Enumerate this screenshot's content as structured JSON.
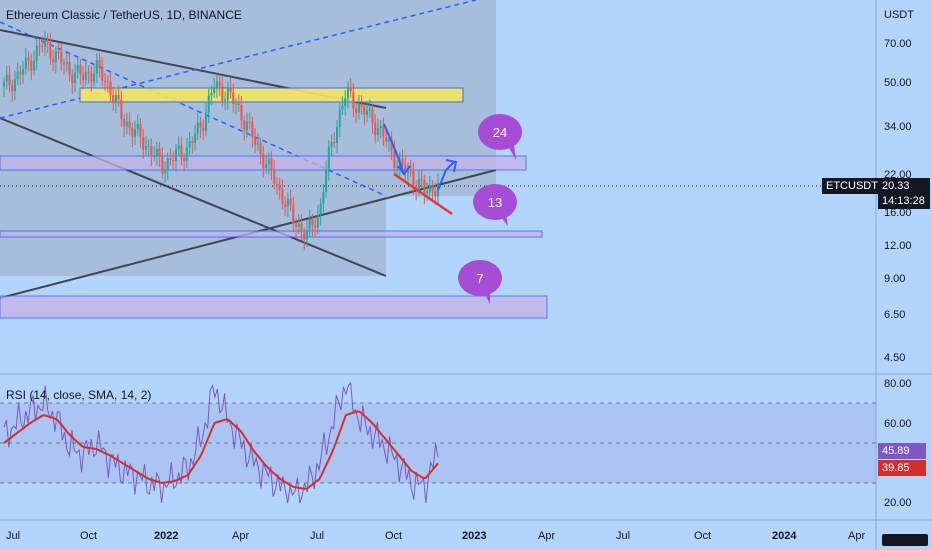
{
  "header": {
    "title": "Ethereum Classic / TetherUS, 1D, BINANCE"
  },
  "rsi": {
    "title": "RSI (14, close, SMA, 14, 2)",
    "value_label": "45.89",
    "sma_label": "39.85",
    "ticks": [
      "80.00",
      "60.00",
      "20.00"
    ]
  },
  "price_axis": {
    "unit": "USDT",
    "ticks": [
      "70.00",
      "50.00",
      "34.00",
      "22.00",
      "16.00",
      "12.00",
      "9.00",
      "6.50",
      "4.50"
    ]
  },
  "last_price": {
    "symbol": "ETCUSDT",
    "price": "20.33",
    "countdown": "14:13:28"
  },
  "time_axis": {
    "labels": [
      "Jul",
      "Oct",
      "2022",
      "Apr",
      "Jul",
      "Oct",
      "2023",
      "Apr",
      "Jul",
      "Oct",
      "2024",
      "Apr"
    ],
    "bold": [
      "2022",
      "2023",
      "2024"
    ]
  },
  "callouts": [
    "24",
    "13",
    "7"
  ],
  "colors": {
    "background": "#b3d4fc",
    "candle_up": "#26a69a",
    "candle_down": "#ef5350",
    "rsi_line": "#7e57c2",
    "rsi_sma": "#d32f2f",
    "zone_blue": "#2962ff",
    "zone_yellow": "#ffeb3b",
    "callout": "#9c4dcc"
  },
  "chart_data": {
    "type": "candlestick",
    "scale": "log",
    "ylim": [
      4.0,
      80.0
    ],
    "series": [
      {
        "name": "ETCUSDT",
        "values": [
          48,
          52,
          60,
          70,
          62,
          55,
          52,
          56,
          48,
          36,
          32,
          28,
          24,
          26,
          28,
          34,
          48,
          45,
          38,
          30,
          24,
          19,
          15,
          13,
          16,
          30,
          45,
          40,
          36,
          30,
          24,
          22,
          19,
          20.33
        ]
      }
    ],
    "rsi_values": [
      54,
      60,
      66,
      70,
      62,
      48,
      44,
      50,
      42,
      36,
      34,
      30,
      28,
      32,
      38,
      52,
      78,
      62,
      50,
      40,
      34,
      28,
      24,
      28,
      40,
      60,
      80,
      62,
      55,
      48,
      40,
      30,
      28,
      45.89
    ],
    "rsi_sma_values": [
      50,
      55,
      60,
      64,
      62,
      54,
      48,
      47,
      44,
      40,
      36,
      32,
      30,
      31,
      34,
      44,
      60,
      62,
      56,
      46,
      38,
      32,
      28,
      27,
      32,
      46,
      64,
      66,
      60,
      52,
      44,
      36,
      32,
      39.85
    ],
    "zones": [
      {
        "name": "yellow-resistance",
        "low": 45,
        "high": 50
      },
      {
        "name": "blue-zone-24",
        "low": 22.5,
        "high": 25
      },
      {
        "name": "blue-zone-13",
        "low": 13.0,
        "high": 13.6
      },
      {
        "name": "blue-zone-7",
        "low": 6.4,
        "high": 7.4
      }
    ]
  }
}
